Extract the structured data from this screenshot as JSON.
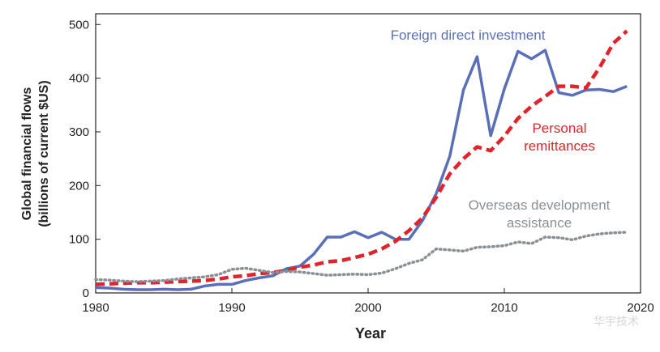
{
  "chart_data": {
    "type": "line",
    "title": "",
    "xlabel": "Year",
    "ylabel_line1": "Global financial flows",
    "ylabel_line2": "(billions of current $US)",
    "xlim": [
      1980,
      2020
    ],
    "ylim": [
      0,
      520
    ],
    "x_ticks": [
      1980,
      1990,
      2000,
      2010,
      2020
    ],
    "y_ticks": [
      0,
      100,
      200,
      300,
      400,
      500
    ],
    "grid": false,
    "legend": "inline labels",
    "series": [
      {
        "name": "Foreign direct investment",
        "label_lines": [
          "Foreign direct investment"
        ],
        "color": "#5b6fb8",
        "style": "solid",
        "x": [
          1980,
          1981,
          1982,
          1983,
          1984,
          1985,
          1986,
          1987,
          1988,
          1989,
          1990,
          1991,
          1992,
          1993,
          1994,
          1995,
          1996,
          1997,
          1998,
          1999,
          2000,
          2001,
          2002,
          2003,
          2004,
          2005,
          2006,
          2007,
          2008,
          2009,
          2010,
          2011,
          2012,
          2013,
          2014,
          2015,
          2016,
          2017,
          2018,
          2019
        ],
        "y": [
          10,
          9,
          7,
          6,
          6,
          7,
          6,
          7,
          13,
          16,
          16,
          23,
          28,
          32,
          45,
          50,
          72,
          104,
          104,
          114,
          103,
          113,
          100,
          100,
          135,
          185,
          255,
          378,
          440,
          293,
          380,
          450,
          436,
          452,
          373,
          368,
          378,
          379,
          375,
          385
        ]
      },
      {
        "name": "Personal remittances",
        "label_lines": [
          "Personal",
          "remittances"
        ],
        "color": "#e0242b",
        "style": "dashed",
        "x": [
          1980,
          1981,
          1982,
          1983,
          1984,
          1985,
          1986,
          1987,
          1988,
          1989,
          1990,
          1991,
          1992,
          1993,
          1994,
          1995,
          1996,
          1997,
          1998,
          1999,
          2000,
          2001,
          2002,
          2003,
          2004,
          2005,
          2006,
          2007,
          2008,
          2009,
          2010,
          2011,
          2012,
          2013,
          2014,
          2015,
          2016,
          2017,
          2018,
          2019
        ],
        "y": [
          16,
          17,
          18,
          19,
          19,
          20,
          21,
          22,
          23,
          26,
          30,
          32,
          36,
          38,
          42,
          48,
          52,
          58,
          60,
          66,
          72,
          82,
          96,
          116,
          140,
          178,
          222,
          250,
          272,
          265,
          292,
          325,
          348,
          366,
          385,
          385,
          382,
          420,
          465,
          488
        ]
      },
      {
        "name": "Overseas development assistance",
        "label_lines": [
          "Overseas development",
          "assistance"
        ],
        "color": "#8a9196",
        "style": "dotted",
        "x": [
          1980,
          1981,
          1982,
          1983,
          1984,
          1985,
          1986,
          1987,
          1988,
          1989,
          1990,
          1991,
          1992,
          1993,
          1994,
          1995,
          1996,
          1997,
          1998,
          1999,
          2000,
          2001,
          2002,
          2003,
          2004,
          2005,
          2006,
          2007,
          2008,
          2009,
          2010,
          2011,
          2012,
          2013,
          2014,
          2015,
          2016,
          2017,
          2018,
          2019
        ],
        "y": [
          25,
          24,
          22,
          21,
          22,
          23,
          26,
          28,
          30,
          34,
          44,
          46,
          42,
          38,
          40,
          39,
          36,
          33,
          34,
          35,
          34,
          37,
          45,
          55,
          62,
          82,
          80,
          78,
          85,
          86,
          88,
          95,
          92,
          104,
          103,
          99,
          106,
          110,
          112,
          113
        ]
      }
    ]
  },
  "watermark": "华宇技术"
}
